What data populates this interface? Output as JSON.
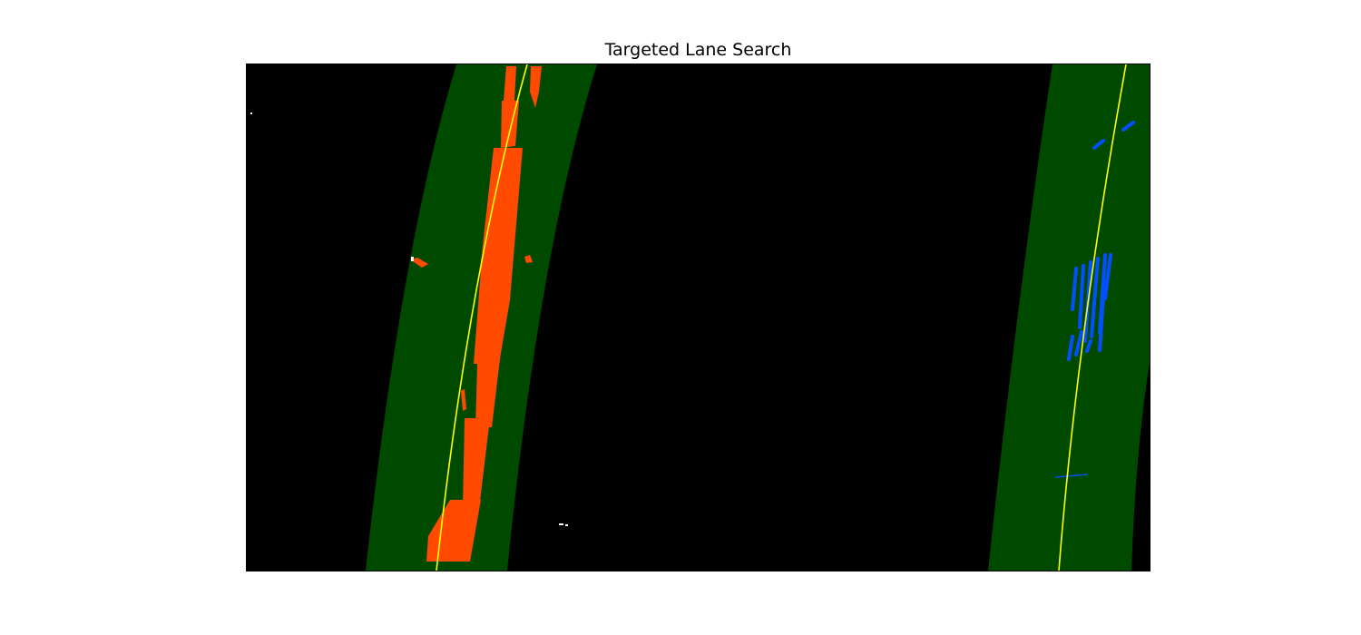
{
  "figure": {
    "title": "Targeted Lane Search"
  },
  "image": {
    "description_colors": {
      "background": "#000000",
      "search_window": "#004a00",
      "left_lane_pixels": "#ff4a00",
      "right_lane_pixels": "#0050ff",
      "fit_line": "#ffff00",
      "noise": "#ffffff"
    }
  }
}
